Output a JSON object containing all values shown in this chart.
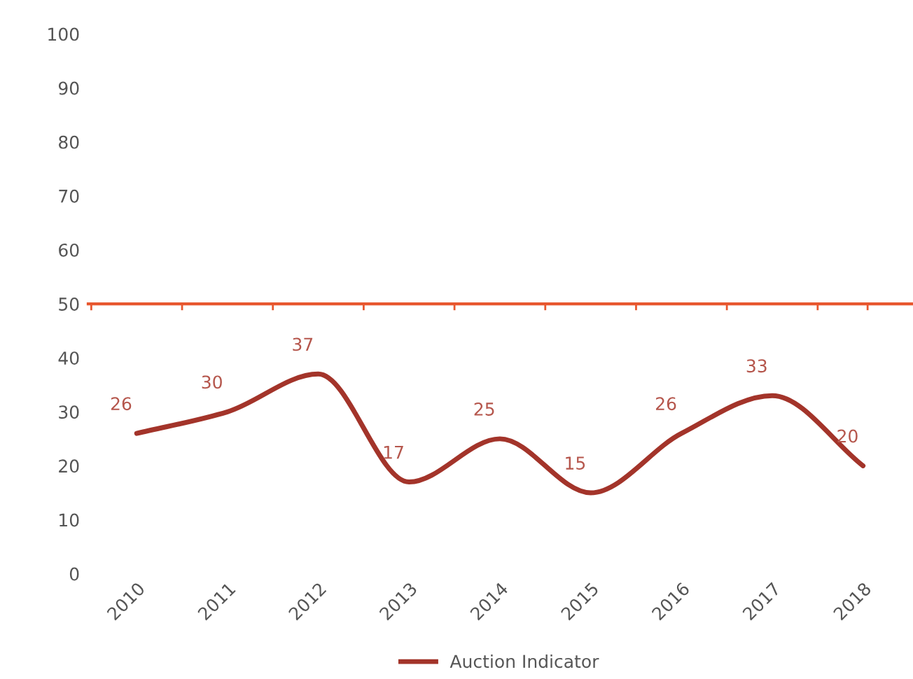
{
  "chart_data": {
    "type": "line",
    "categories": [
      "2010",
      "2011",
      "2012",
      "2013",
      "2014",
      "2015",
      "2016",
      "2017",
      "2018"
    ],
    "series": [
      {
        "name": "Auction Indicator",
        "color": "#a3342a",
        "values": [
          26,
          30,
          37,
          17,
          25,
          15,
          26,
          33,
          20
        ]
      }
    ],
    "ylim": [
      0,
      100
    ],
    "yticks": [
      0,
      10,
      20,
      30,
      40,
      50,
      60,
      70,
      80,
      90,
      100
    ],
    "ref_lines": [
      {
        "axis": "y",
        "value": 50,
        "color": "#e8572f"
      }
    ],
    "data_labels": true,
    "grid": false,
    "legend": "bottom",
    "marker": "none",
    "line_style": "solid"
  }
}
